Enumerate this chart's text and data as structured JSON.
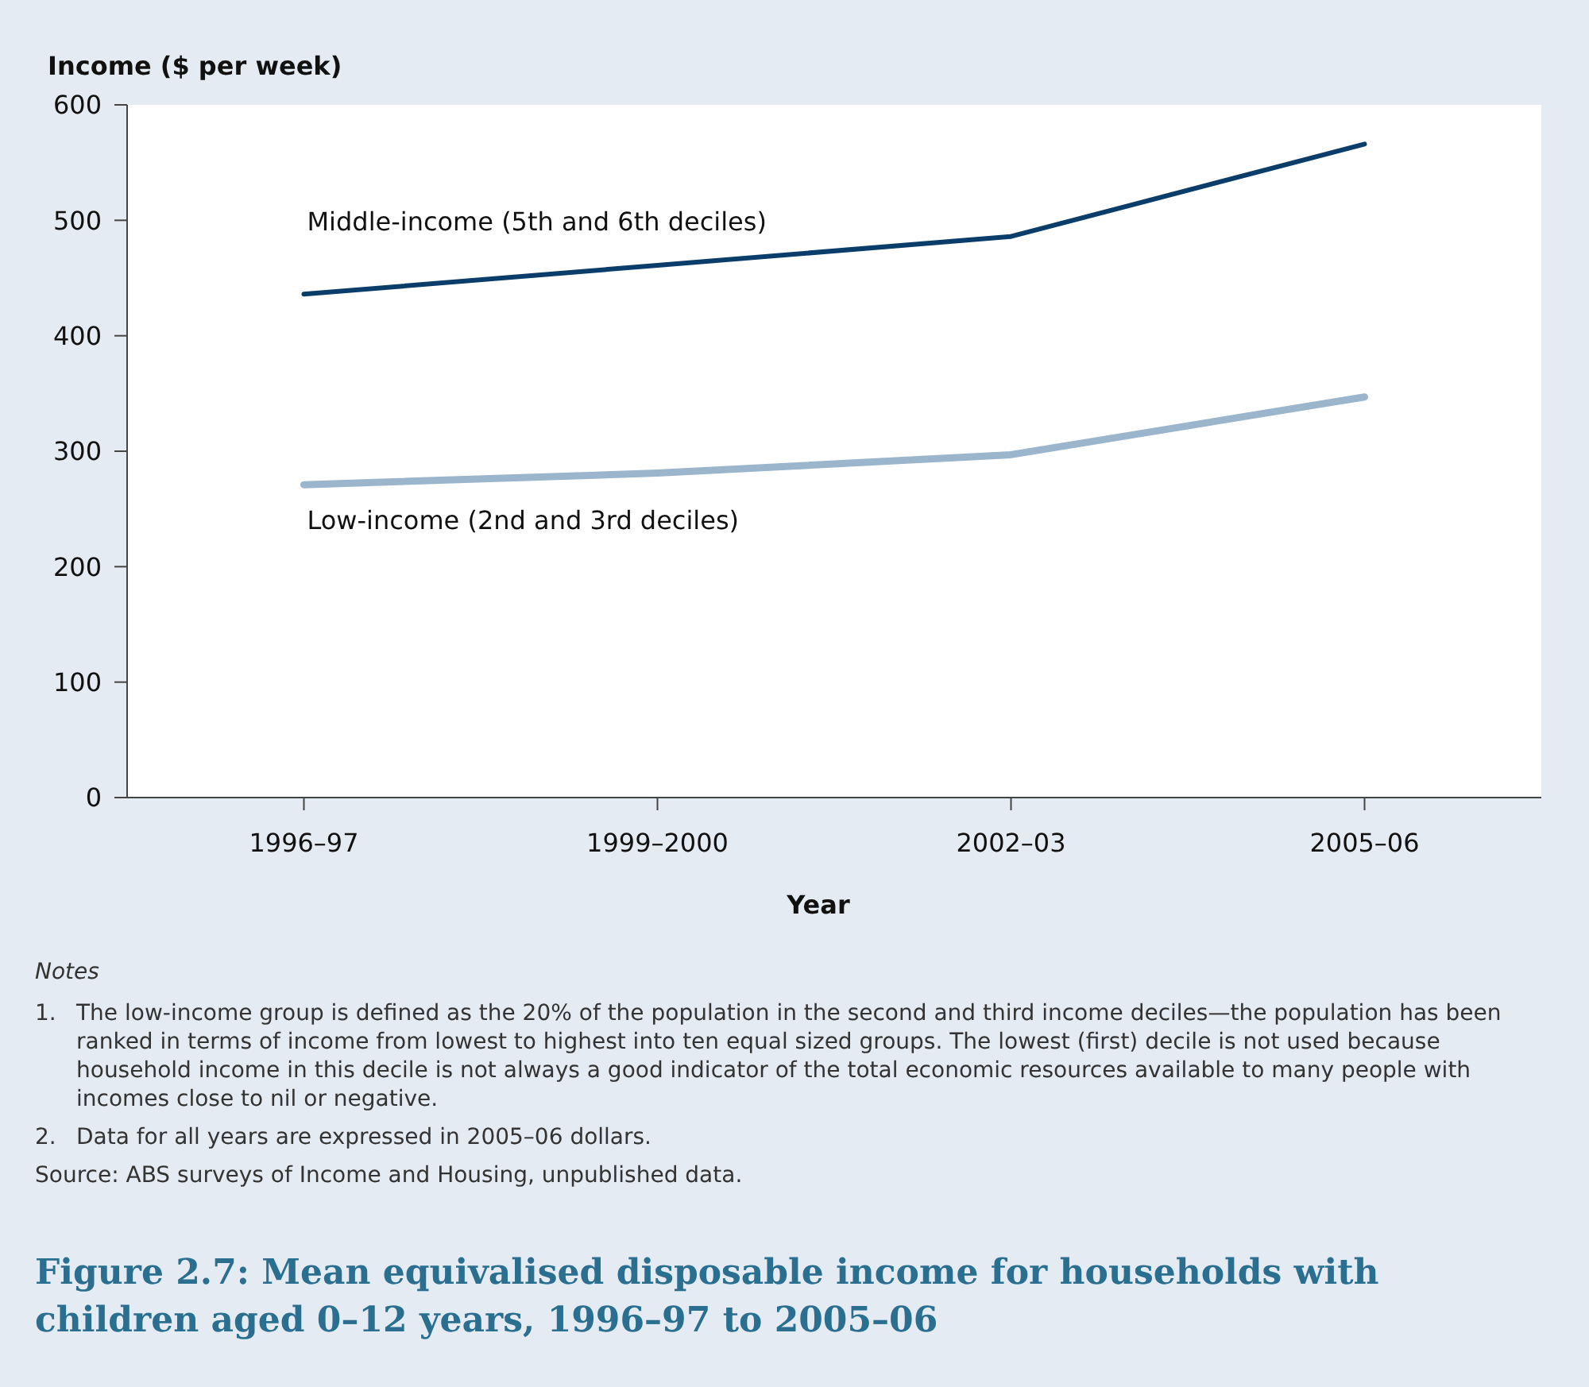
{
  "chart_data": {
    "type": "line",
    "title": "Figure 2.7: Mean equivalised disposable income for households with children aged 0–12 years, 1996–97 to 2005–06",
    "xlabel": "Year",
    "ylabel": "Income ($ per week)",
    "categories": [
      "1996–97",
      "1999–2000",
      "2002–03",
      "2005–06"
    ],
    "series": [
      {
        "name": "Middle-income (5th and 6th deciles)",
        "color": "#0b3d6b",
        "values": [
          436,
          461,
          486,
          566
        ]
      },
      {
        "name": "Low-income (2nd and 3rd deciles)",
        "color": "#9ab5cc",
        "values": [
          271,
          281,
          297,
          347
        ]
      }
    ],
    "ylim": [
      0,
      600
    ],
    "yticks": [
      0,
      100,
      200,
      300,
      400,
      500,
      600
    ],
    "grid": false,
    "legend": false,
    "marker": "none",
    "line_style": "solid",
    "annotations": [
      "Notes",
      "1.  The low-income group is defined as the 20% of the population in the second and third income deciles—the population has been ranked in terms of income from lowest to highest into ten equal sized groups. The lowest (first) decile is not used because household income in this decile is not always a good indicator of the total economic resources available to many people with incomes close to nil or negative.",
      "2.  Data for all years are expressed in 2005–06 dollars.",
      "Source: ABS surveys of Income and Housing, unpublished data."
    ]
  }
}
